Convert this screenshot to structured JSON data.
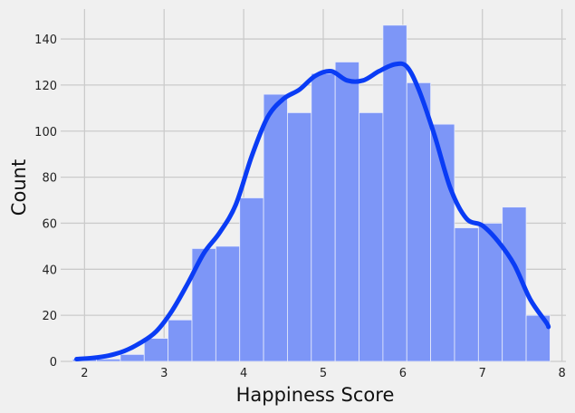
{
  "chart_data": {
    "type": "bar",
    "subtype": "histogram-with-kde",
    "title": "",
    "xlabel": "Happiness Score",
    "ylabel": "Count",
    "xlim": [
      1.7,
      8.05
    ],
    "ylim": [
      0,
      153
    ],
    "xticks": [
      2,
      3,
      4,
      5,
      6,
      7,
      8
    ],
    "yticks": [
      0,
      20,
      40,
      60,
      80,
      100,
      120,
      140
    ],
    "grid": true,
    "legend": "none",
    "bin_edges": [
      1.85,
      2.15,
      2.45,
      2.75,
      3.05,
      3.35,
      3.65,
      3.95,
      4.25,
      4.55,
      4.85,
      5.15,
      5.45,
      5.75,
      6.05,
      6.35,
      6.65,
      6.95,
      7.25,
      7.55,
      7.85
    ],
    "counts": [
      1,
      1,
      3,
      10,
      18,
      49,
      50,
      71,
      116,
      108,
      125,
      130,
      108,
      146,
      121,
      103,
      58,
      60,
      67,
      20
    ],
    "kde": {
      "x": [
        1.9,
        2.1,
        2.3,
        2.5,
        2.7,
        2.9,
        3.1,
        3.3,
        3.5,
        3.7,
        3.9,
        4.1,
        4.3,
        4.5,
        4.7,
        4.9,
        5.1,
        5.3,
        5.5,
        5.7,
        5.9,
        6.05,
        6.2,
        6.4,
        6.6,
        6.8,
        7.0,
        7.2,
        7.4,
        7.6,
        7.8,
        7.83
      ],
      "y": [
        1,
        1.5,
        2.5,
        4.5,
        8,
        13,
        22,
        34,
        47,
        56,
        68,
        89,
        106,
        114,
        118,
        124,
        126,
        122,
        122,
        126,
        129,
        128,
        118,
        98,
        75,
        62,
        59,
        52,
        42,
        27,
        17,
        15
      ]
    },
    "colors": {
      "bar_fill": "#7d96f7",
      "bar_edge": "#e8ecfb",
      "kde_line": "#0a3cf5",
      "grid": "#cbcbcb",
      "background": "#f0f0f0"
    }
  }
}
